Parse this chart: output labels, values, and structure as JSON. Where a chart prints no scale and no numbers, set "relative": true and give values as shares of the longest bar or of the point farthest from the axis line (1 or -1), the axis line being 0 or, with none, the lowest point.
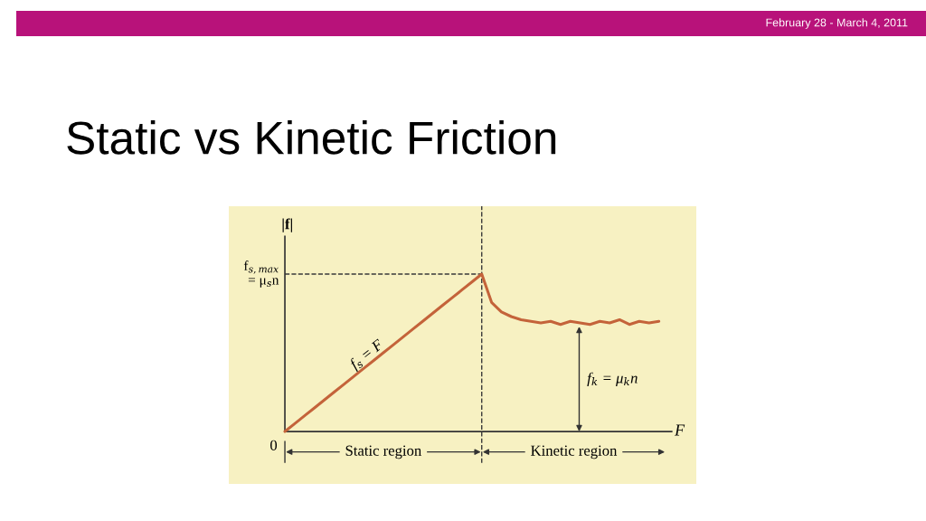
{
  "chart_data": {
    "type": "line",
    "title": "Static vs Kinetic Friction",
    "xlabel": "F",
    "ylabel": "|f|",
    "relative": true,
    "categories": [
      null,
      null,
      null,
      null,
      null,
      null,
      null,
      null,
      null,
      null,
      null,
      null,
      null,
      null,
      null,
      null,
      null,
      null,
      null,
      null,
      null,
      null,
      null,
      null,
      null,
      null,
      null,
      null,
      null,
      null,
      null,
      null,
      null,
      null,
      null,
      null,
      null,
      null,
      null
    ],
    "series": [
      {
        "color": "#c4633a",
        "values": [
          0,
          0.05,
          0.1,
          0.15,
          0.2,
          0.25,
          0.3,
          0.35,
          0.4,
          0.45,
          0.5,
          0.55,
          0.6,
          0.65,
          0.7,
          0.75,
          0.8,
          0.85,
          0.9,
          0.95,
          1,
          0.82,
          0.76,
          0.73,
          0.71,
          0.7,
          0.69,
          0.7,
          0.68,
          0.7,
          0.69,
          0.68,
          0.7,
          0.69,
          0.71,
          0.68,
          0.7,
          0.69,
          0.7
        ]
      }
    ],
    "ref_lines": [
      {
        "axis": "y",
        "value": 1,
        "label": "f$_{s,max}$\n= μ$_{s}$n",
        "color": "#3a3a3a",
        "line_style": "dashed"
      }
    ],
    "annotations": [
      "0",
      "f$_{s}$ = F",
      "f$_{k}$ = μ$_{k}$n",
      "Static region",
      "Kinetic region",
      "February 28 - March 4, 2011"
    ],
    "line_style": "solid",
    "marker": "none"
  }
}
